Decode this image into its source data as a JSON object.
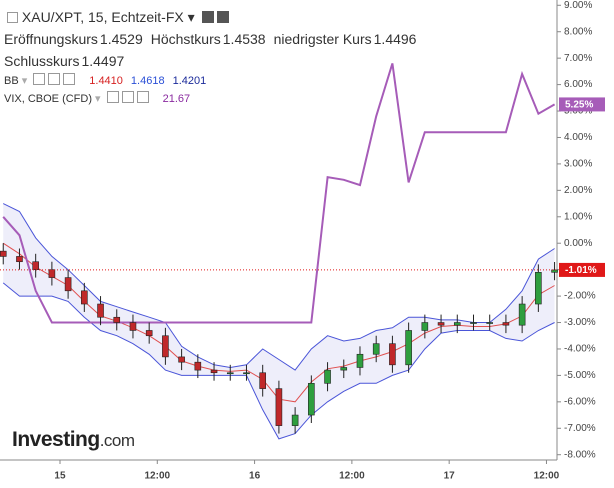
{
  "chart_data": {
    "type": "candlestick",
    "title": "XAU/XPT, 15, Echtzeit-FX",
    "ohlc_labels": [
      {
        "name": "Eröffnungskurs",
        "value": "1.4529"
      },
      {
        "name": "Höchstkurs",
        "value": "1.4538"
      },
      {
        "name": "niedrigster Kurs",
        "value": "1.4496"
      },
      {
        "name": "Schlusskurs",
        "value": "1.4497"
      }
    ],
    "indicators": [
      {
        "name": "BB",
        "values": [
          "1.4410",
          "1.4618",
          "1.4201"
        ],
        "colors": [
          "#d62020",
          "#2a4fd6",
          "#1a2a9a"
        ]
      },
      {
        "name": "VIX, CBOE (CFD)",
        "values": [
          "21.67"
        ],
        "colors": [
          "#8a2aa0"
        ]
      }
    ],
    "x": [
      -7,
      -5,
      -3,
      -1,
      1,
      3,
      5,
      7,
      9,
      11,
      13,
      15,
      17,
      19,
      21,
      23,
      25,
      27,
      29,
      31,
      33,
      35,
      37,
      39,
      41,
      43,
      45,
      47,
      49,
      51,
      53,
      55,
      57,
      59,
      61
    ],
    "xlim": [
      -7.4,
      61.3
    ],
    "xticks": [
      {
        "value": 0,
        "label": "15"
      },
      {
        "value": 12,
        "label": "12:00"
      },
      {
        "value": 24,
        "label": "16"
      },
      {
        "value": 36,
        "label": "12:00"
      },
      {
        "value": 48,
        "label": "17"
      },
      {
        "value": 60,
        "label": "12:00"
      }
    ],
    "ylim": [
      -8.2,
      9.2
    ],
    "yticks": [
      {
        "value": 9,
        "label": "9.00%"
      },
      {
        "value": 8,
        "label": "8.00%"
      },
      {
        "value": 7,
        "label": "7.00%"
      },
      {
        "value": 6,
        "label": "6.00%"
      },
      {
        "value": 5,
        "label": "5.00%"
      },
      {
        "value": 4,
        "label": "4.00%"
      },
      {
        "value": 3,
        "label": "3.00%"
      },
      {
        "value": 2,
        "label": "2.00%"
      },
      {
        "value": 1,
        "label": "1.00%"
      },
      {
        "value": 0,
        "label": "0.00%"
      },
      {
        "value": -1,
        "label": "-1.00%"
      },
      {
        "value": -2,
        "label": "-2.00%"
      },
      {
        "value": -3,
        "label": "-3.00%"
      },
      {
        "value": -4,
        "label": "-4.00%"
      },
      {
        "value": -5,
        "label": "-5.00%"
      },
      {
        "value": -6,
        "label": "-6.00%"
      },
      {
        "value": -7,
        "label": "-7.00%"
      },
      {
        "value": -8,
        "label": "-8.00%"
      }
    ],
    "grid": false,
    "open": [
      -0.3,
      -0.5,
      -0.7,
      -1.0,
      -1.3,
      -1.8,
      -2.3,
      -2.8,
      -3.0,
      -3.3,
      -3.5,
      -4.3,
      -4.5,
      -4.8,
      -4.9,
      -4.9,
      -4.9,
      -5.5,
      -6.9,
      -6.5,
      -5.3,
      -4.8,
      -4.7,
      -4.2,
      -3.8,
      -4.6,
      -3.3,
      -3.0,
      -3.1,
      -3.0,
      -3.0,
      -3.0,
      -3.1,
      -2.3,
      -1.1
    ],
    "high": [
      0.0,
      -0.2,
      -0.4,
      -0.7,
      -1.0,
      -1.5,
      -2.0,
      -2.5,
      -2.7,
      -3.0,
      -3.2,
      -4.0,
      -4.2,
      -4.5,
      -4.6,
      -4.6,
      -4.6,
      -5.2,
      -6.2,
      -5.0,
      -4.5,
      -4.4,
      -3.9,
      -3.5,
      -3.5,
      -3.0,
      -2.7,
      -2.7,
      -2.7,
      -2.7,
      -2.7,
      -2.7,
      -2.0,
      -0.8,
      -0.71
    ],
    "low": [
      -0.8,
      -1.0,
      -1.3,
      -1.6,
      -2.1,
      -2.6,
      -3.1,
      -3.3,
      -3.6,
      -3.8,
      -4.6,
      -4.8,
      -5.1,
      -5.2,
      -5.2,
      -5.2,
      -5.8,
      -7.2,
      -7.2,
      -6.8,
      -5.6,
      -5.1,
      -5.0,
      -4.5,
      -4.9,
      -4.9,
      -3.6,
      -3.4,
      -3.4,
      -3.3,
      -3.3,
      -3.4,
      -3.4,
      -2.6,
      -1.4
    ],
    "close": [
      -0.5,
      -0.7,
      -1.0,
      -1.3,
      -1.8,
      -2.3,
      -2.8,
      -3.0,
      -3.3,
      -3.5,
      -4.3,
      -4.5,
      -4.8,
      -4.9,
      -4.9,
      -4.9,
      -5.5,
      -6.9,
      -6.5,
      -5.3,
      -4.8,
      -4.7,
      -4.2,
      -3.8,
      -4.6,
      -3.3,
      -3.0,
      -3.1,
      -3.0,
      -3.0,
      -3.0,
      -3.1,
      -2.3,
      -1.1,
      -1.01
    ],
    "up_color": "#2e9e3e",
    "down_color": "#c0282a",
    "bands": {
      "upper": [
        1.5,
        1.2,
        0.2,
        -0.5,
        -1.0,
        -1.6,
        -2.2,
        -2.4,
        -2.6,
        -2.8,
        -3.0,
        -3.9,
        -4.3,
        -4.6,
        -4.7,
        -4.6,
        -4.0,
        -4.4,
        -4.8,
        -4.0,
        -3.5,
        -3.7,
        -3.6,
        -3.3,
        -3.2,
        -2.8,
        -2.8,
        -2.9,
        -2.9,
        -3.0,
        -3.0,
        -2.5,
        -1.8,
        -0.6,
        -0.2
      ],
      "middle": [
        0,
        -0.4,
        -0.9,
        -1.25,
        -1.6,
        -2.2,
        -2.75,
        -2.95,
        -3.2,
        -3.5,
        -3.9,
        -4.45,
        -4.65,
        -4.8,
        -4.85,
        -4.8,
        -5.15,
        -5.9,
        -6.0,
        -5.25,
        -4.75,
        -4.65,
        -4.45,
        -4.3,
        -4.1,
        -3.8,
        -3.4,
        -3.15,
        -3.1,
        -3.15,
        -3.15,
        -3.05,
        -2.75,
        -1.95,
        -1.6
      ],
      "lower": [
        -1.5,
        -2.0,
        -2.0,
        -2.0,
        -2.2,
        -2.8,
        -3.3,
        -3.5,
        -3.8,
        -4.2,
        -4.8,
        -5.0,
        -5.0,
        -5.0,
        -5.0,
        -5.0,
        -6.3,
        -7.4,
        -7.2,
        -6.5,
        -6.0,
        -5.6,
        -5.3,
        -5.3,
        -5.0,
        -4.8,
        -4.0,
        -3.4,
        -3.3,
        -3.3,
        -3.3,
        -3.6,
        -3.7,
        -3.3,
        -3.0
      ],
      "band_color": "#4a55d8",
      "middle_color": "#e05050",
      "fill": "rgba(120,120,220,0.13)"
    },
    "overlay": {
      "values": [
        1.0,
        0.3,
        -1.8,
        -3,
        -3,
        -3,
        -3,
        -3,
        -3,
        -3,
        -3,
        -3,
        -3,
        -3,
        -3,
        -3,
        -3,
        -3,
        -3,
        -3,
        2.5,
        2.4,
        2.2,
        4.8,
        6.8,
        2.3,
        4.2,
        4.2,
        4.2,
        4.2,
        4.2,
        4.2,
        6.4,
        4.9,
        5.25
      ],
      "color": "#a65cb8"
    },
    "last_markers": [
      {
        "value": 5.25,
        "label": "5.25%",
        "color": "#a65cb8"
      },
      {
        "value": -1.01,
        "label": "-1.01%",
        "color": "#e01818"
      }
    ]
  },
  "logo": {
    "text": "Investing",
    "suffix": ".com"
  }
}
